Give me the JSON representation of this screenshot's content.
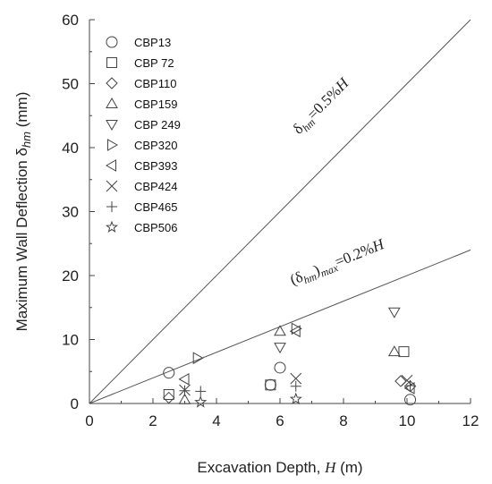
{
  "chart_data": {
    "type": "scatter",
    "xlabel": "Excavation Depth, ",
    "xlabel_italic": "H",
    "xlabel_unit": " (m)",
    "ylabel": "Maximum Wall Deflection δ",
    "ylabel_sub": "hm",
    "ylabel_unit": " (mm)",
    "xlim": [
      0,
      12
    ],
    "ylim": [
      0,
      60
    ],
    "x_ticks": [
      "0",
      "2",
      "4",
      "6",
      "8",
      "10",
      "12"
    ],
    "y_ticks": [
      "0",
      "10",
      "20",
      "30",
      "40",
      "50",
      "60"
    ],
    "grid": false,
    "legend_position": "top-left",
    "reference_lines": [
      {
        "slope_mm_per_m": 5,
        "label_main": "δ",
        "label_sub": "hm",
        "label_rest": "=0.5%",
        "label_italic": "H",
        "label_x": 6.6,
        "label_y": 42
      },
      {
        "slope_mm_per_m": 2,
        "label_main": "(δ",
        "label_sub": "hm",
        "label_mid": ")",
        "label_sub2": "max",
        "label_rest": "=0.2%",
        "label_italic": "H",
        "label_x": 6.4,
        "label_y": 18.5
      }
    ],
    "series": [
      {
        "name": "CBP13",
        "marker": "circle",
        "points": [
          [
            2.5,
            4.8
          ],
          [
            6.0,
            5.6
          ],
          [
            5.7,
            2.9
          ],
          [
            10.1,
            0.6
          ]
        ]
      },
      {
        "name": "CBP 72",
        "marker": "square",
        "points": [
          [
            2.5,
            1.4
          ],
          [
            5.7,
            2.9
          ],
          [
            9.9,
            8.1
          ]
        ]
      },
      {
        "name": "CBP110",
        "marker": "diamond",
        "points": [
          [
            2.5,
            0.9
          ],
          [
            9.8,
            3.5
          ],
          [
            10.1,
            2.7
          ]
        ]
      },
      {
        "name": "CBP159",
        "marker": "triangle-up",
        "points": [
          [
            3.0,
            0.6
          ],
          [
            6.0,
            11.3
          ],
          [
            9.6,
            8.1
          ]
        ]
      },
      {
        "name": "CBP 249",
        "marker": "triangle-down",
        "points": [
          [
            6.0,
            8.8
          ],
          [
            9.6,
            14.3
          ]
        ]
      },
      {
        "name": "CBP320",
        "marker": "triangle-right",
        "points": [
          [
            3.4,
            7.1
          ],
          [
            6.5,
            11.7
          ]
        ]
      },
      {
        "name": "CBP393",
        "marker": "triangle-left",
        "points": [
          [
            3.0,
            3.8
          ],
          [
            6.5,
            11.3
          ],
          [
            10.1,
            2.4
          ]
        ]
      },
      {
        "name": "CBP424",
        "marker": "x",
        "points": [
          [
            3.0,
            2.1
          ],
          [
            6.5,
            3.9
          ],
          [
            10.0,
            3.6
          ]
        ]
      },
      {
        "name": "CBP465",
        "marker": "plus",
        "points": [
          [
            3.0,
            2.0
          ],
          [
            3.5,
            1.9
          ],
          [
            6.5,
            2.7
          ],
          [
            10.1,
            2.8
          ]
        ]
      },
      {
        "name": "CBP506",
        "marker": "star",
        "points": [
          [
            3.5,
            0.2
          ],
          [
            6.5,
            0.7
          ]
        ]
      }
    ]
  }
}
